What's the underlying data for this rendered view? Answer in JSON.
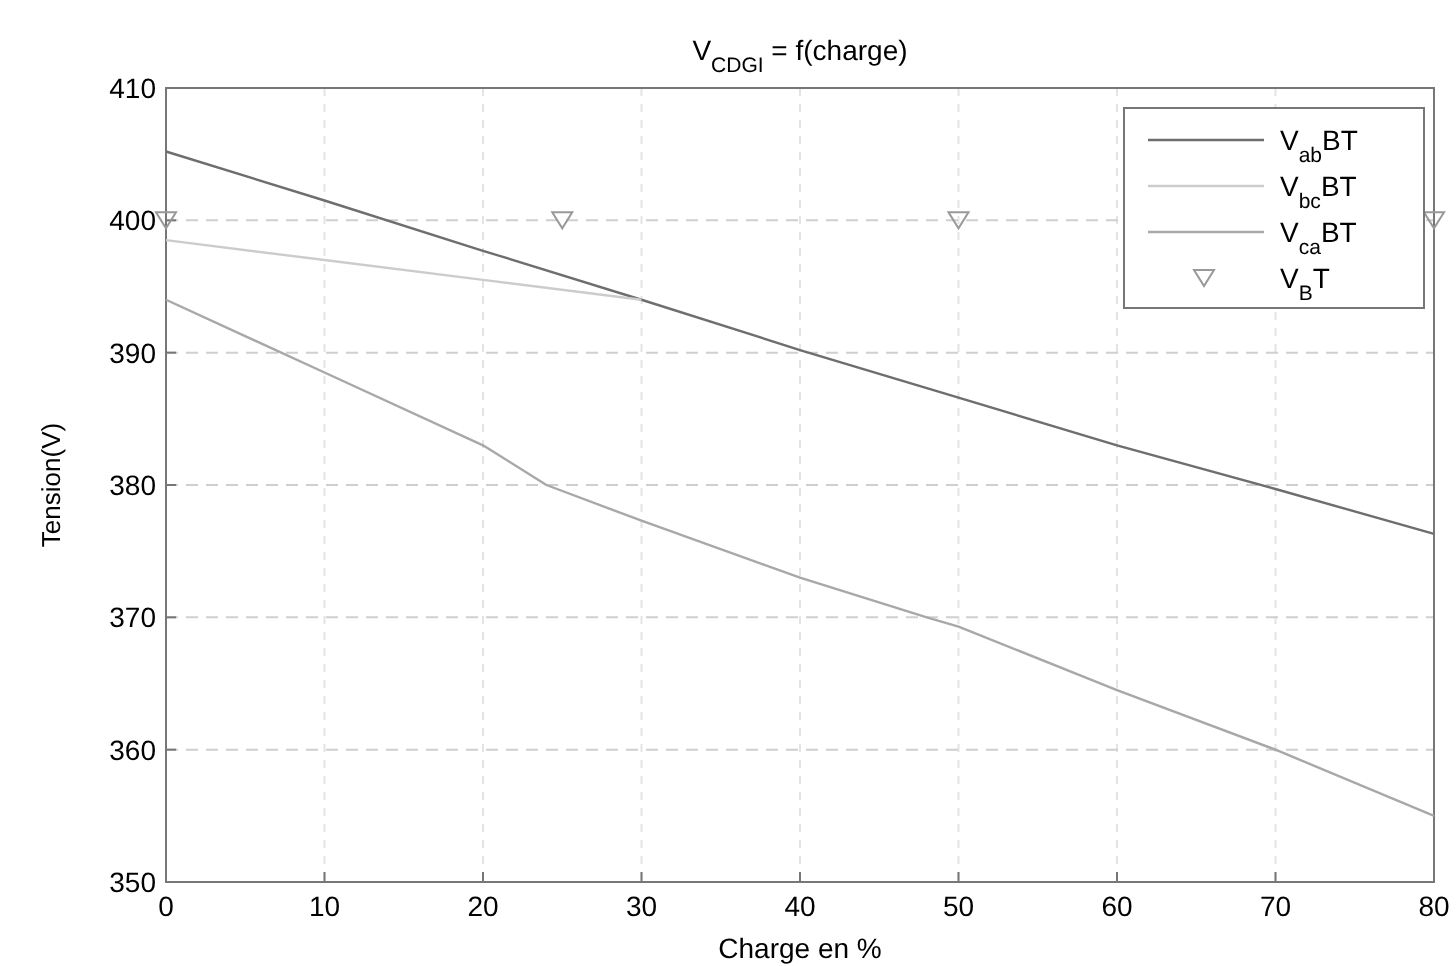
{
  "chart_data": {
    "type": "line",
    "title": "V$_{CDGI}$ = f(charge)",
    "xlabel": "Charge en %",
    "ylabel": "Tension(V)",
    "xlim": [
      0,
      80
    ],
    "xticks": [
      0,
      10,
      20,
      30,
      40,
      50,
      60,
      70,
      80
    ],
    "ylim": [
      350,
      410
    ],
    "yticks": [
      350,
      360,
      370,
      380,
      390,
      400,
      410
    ],
    "grid": true,
    "legend": "top right",
    "series": [
      {
        "name": "V$_{ab}$BT",
        "color": "#6e6e6e",
        "x": [
          0,
          10,
          20,
          30,
          40,
          50,
          60,
          70,
          80
        ],
        "values": [
          405.2,
          401.5,
          397.7,
          394,
          390.2,
          386.6,
          383,
          379.7,
          376.3
        ]
      },
      {
        "name": "V$_{bc}$BT",
        "color": "#cccccc",
        "x": [
          0,
          10,
          20,
          30
        ],
        "values": [
          398.5,
          397,
          395.5,
          394
        ]
      },
      {
        "name": "V$_{ca}$BT",
        "color": "#a8a8a8",
        "x": [
          0,
          10,
          20,
          24,
          30,
          40,
          48,
          50,
          60,
          70,
          80
        ],
        "values": [
          394,
          388.5,
          383,
          380,
          377.3,
          373,
          370,
          369.3,
          364.5,
          360,
          355
        ]
      },
      {
        "name": "V$_{B}$T",
        "type": "scatter",
        "marker": "triangle",
        "color": "#999999",
        "x": [
          0,
          25,
          50,
          80
        ],
        "values": [
          400,
          400,
          400,
          400
        ]
      }
    ]
  }
}
